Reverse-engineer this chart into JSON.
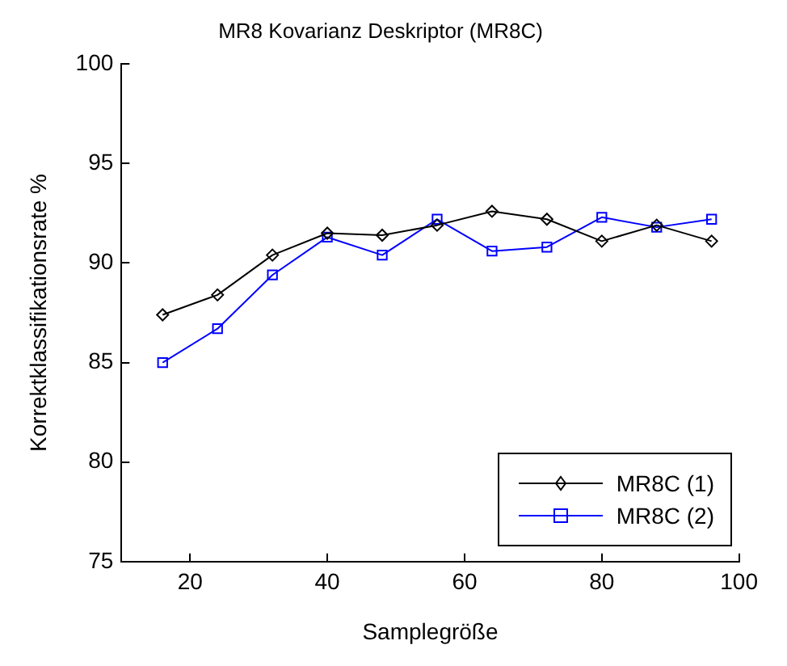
{
  "chart_data": {
    "type": "line",
    "title": "MR8 Kovarianz Deskriptor (MR8C)",
    "xlabel": "Samplegröße",
    "ylabel": "Korrektklassifikationsrate %",
    "x": [
      16,
      24,
      32,
      40,
      48,
      56,
      64,
      72,
      80,
      88,
      96
    ],
    "series": [
      {
        "name": "MR8C (1)",
        "color": "#000000",
        "marker": "diamond",
        "values": [
          87.4,
          88.4,
          90.4,
          91.5,
          91.4,
          91.9,
          92.6,
          92.2,
          91.1,
          91.9,
          91.1
        ]
      },
      {
        "name": "MR8C (2)",
        "color": "#0000ff",
        "marker": "square",
        "values": [
          85.0,
          86.7,
          89.4,
          91.3,
          90.4,
          92.2,
          90.6,
          90.8,
          92.3,
          91.8,
          92.2
        ]
      }
    ],
    "xlim": [
      10,
      100
    ],
    "xticks": [
      20,
      40,
      60,
      80,
      100
    ],
    "ylim": [
      75,
      100
    ],
    "yticks": [
      75,
      80,
      85,
      90,
      95,
      100
    ],
    "grid": false,
    "legend": "bottom right",
    "line_style": "solid"
  }
}
